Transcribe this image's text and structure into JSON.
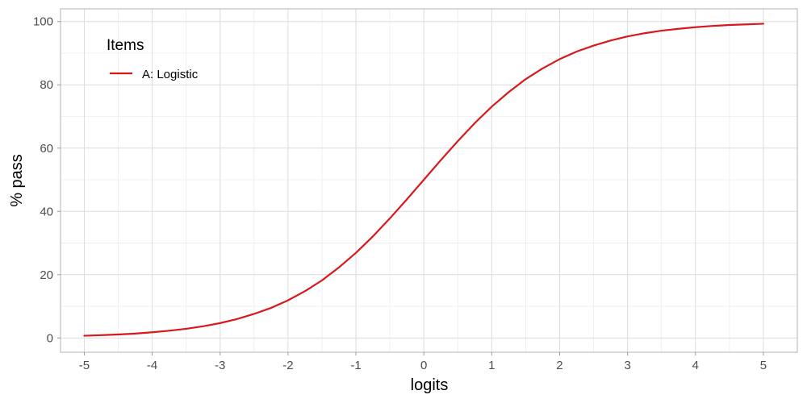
{
  "chart_data": {
    "type": "line",
    "xlabel": "logits",
    "ylabel": "% pass",
    "xlim": [
      -5.35,
      5.5
    ],
    "ylim": [
      -4.5,
      104
    ],
    "x_ticks": [
      -5,
      -4,
      -3,
      -2,
      -1,
      0,
      1,
      2,
      3,
      4,
      5
    ],
    "x_tick_labels": [
      "-5",
      "-4",
      "-3",
      "-2",
      "-1",
      "0",
      "1",
      "2",
      "3",
      "4",
      "5"
    ],
    "y_ticks": [
      0,
      20,
      40,
      60,
      80,
      100
    ],
    "y_tick_labels": [
      "0",
      "20",
      "40",
      "60",
      "80",
      "100"
    ],
    "grid": true,
    "legend": {
      "title": "Items",
      "position": "top-left",
      "entries": [
        {
          "label": "A: Logistic",
          "color": "#d7191c"
        }
      ]
    },
    "series": [
      {
        "name": "A: Logistic",
        "color": "#d7191c",
        "x": [
          -5,
          -4.75,
          -4.5,
          -4.25,
          -4,
          -3.75,
          -3.5,
          -3.25,
          -3,
          -2.75,
          -2.5,
          -2.25,
          -2,
          -1.75,
          -1.5,
          -1.25,
          -1,
          -0.75,
          -0.5,
          -0.25,
          0,
          0.25,
          0.5,
          0.75,
          1,
          1.25,
          1.5,
          1.75,
          2,
          2.25,
          2.5,
          2.75,
          3,
          3.25,
          3.5,
          3.75,
          4,
          4.25,
          4.5,
          4.75,
          5
        ],
        "y": [
          0.7,
          0.9,
          1.1,
          1.4,
          1.8,
          2.3,
          2.9,
          3.7,
          4.7,
          6.0,
          7.6,
          9.5,
          11.9,
          14.8,
          18.2,
          22.3,
          26.9,
          32.1,
          37.8,
          43.8,
          50.0,
          56.2,
          62.2,
          67.9,
          73.1,
          77.7,
          81.8,
          85.2,
          88.1,
          90.5,
          92.4,
          94.0,
          95.3,
          96.3,
          97.1,
          97.7,
          98.2,
          98.6,
          98.9,
          99.1,
          99.3
        ]
      }
    ]
  }
}
